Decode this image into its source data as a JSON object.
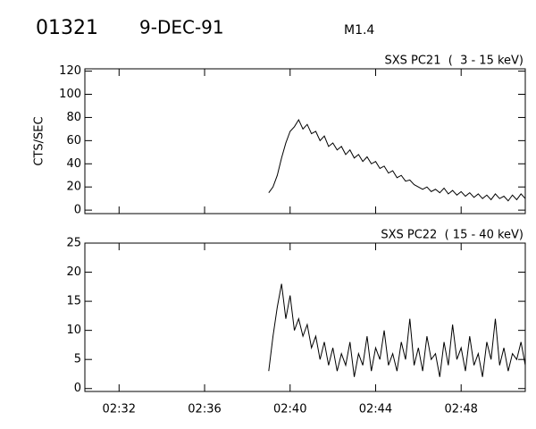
{
  "header": {
    "event": "01321",
    "date": "9-DEC-91",
    "class": "M1.4"
  },
  "chart_data": [
    {
      "type": "line",
      "title": "SXS PC21  (  3 - 15 keV)",
      "y_label": "CTS/SEC",
      "x": [
        159.0,
        159.2,
        159.4,
        159.6,
        159.8,
        160.0,
        160.2,
        160.4,
        160.6,
        160.8,
        161.0,
        161.2,
        161.4,
        161.6,
        161.8,
        162.0,
        162.2,
        162.4,
        162.6,
        162.8,
        163.0,
        163.2,
        163.4,
        163.6,
        163.8,
        164.0,
        164.2,
        164.4,
        164.6,
        164.8,
        165.0,
        165.2,
        165.4,
        165.6,
        165.8,
        166.0,
        166.2,
        166.4,
        166.6,
        166.8,
        167.0,
        167.2,
        167.4,
        167.6,
        167.8,
        168.0,
        168.2,
        168.4,
        168.6,
        168.8,
        169.0,
        169.2,
        169.4,
        169.6,
        169.8,
        170.0,
        170.2,
        170.4,
        170.6,
        170.8,
        171.0
      ],
      "series": [
        {
          "color": "#000000",
          "values": [
            15,
            20,
            30,
            45,
            58,
            68,
            72,
            78,
            70,
            74,
            66,
            68,
            60,
            64,
            55,
            58,
            52,
            55,
            48,
            52,
            45,
            48,
            42,
            46,
            40,
            42,
            36,
            38,
            32,
            34,
            28,
            30,
            25,
            26,
            22,
            20,
            18,
            20,
            16,
            18,
            15,
            19,
            14,
            17,
            13,
            16,
            12,
            15,
            11,
            14,
            10,
            13,
            9,
            14,
            10,
            12,
            8,
            13,
            9,
            14,
            10
          ]
        }
      ],
      "xlim": [
        150.4,
        171.0
      ],
      "xticks": [
        152,
        156,
        160,
        164,
        168
      ],
      "ylim": [
        -3,
        122
      ],
      "yticks": [
        0,
        20,
        40,
        60,
        80,
        100,
        120
      ]
    },
    {
      "type": "line",
      "title": "SXS PC22  ( 15 - 40 keV)",
      "x": [
        159.0,
        159.2,
        159.4,
        159.6,
        159.8,
        160.0,
        160.2,
        160.4,
        160.6,
        160.8,
        161.0,
        161.2,
        161.4,
        161.6,
        161.8,
        162.0,
        162.2,
        162.4,
        162.6,
        162.8,
        163.0,
        163.2,
        163.4,
        163.6,
        163.8,
        164.0,
        164.2,
        164.4,
        164.6,
        164.8,
        165.0,
        165.2,
        165.4,
        165.6,
        165.8,
        166.0,
        166.2,
        166.4,
        166.6,
        166.8,
        167.0,
        167.2,
        167.4,
        167.6,
        167.8,
        168.0,
        168.2,
        168.4,
        168.6,
        168.8,
        169.0,
        169.2,
        169.4,
        169.6,
        169.8,
        170.0,
        170.2,
        170.4,
        170.6,
        170.8,
        171.0
      ],
      "series": [
        {
          "color": "#000000",
          "values": [
            3,
            9,
            14,
            18,
            12,
            16,
            10,
            12,
            9,
            11,
            7,
            9,
            5,
            8,
            4,
            7,
            3,
            6,
            4,
            8,
            2,
            6,
            4,
            9,
            3,
            7,
            5,
            10,
            4,
            6,
            3,
            8,
            5,
            12,
            4,
            7,
            3,
            9,
            5,
            6,
            2,
            8,
            4,
            11,
            5,
            7,
            3,
            9,
            4,
            6,
            2,
            8,
            5,
            12,
            4,
            7,
            3,
            6,
            5,
            8,
            4
          ]
        }
      ],
      "xlim": [
        150.4,
        171.0
      ],
      "xticks": [
        {
          "value": 152,
          "label": "02:32"
        },
        {
          "value": 156,
          "label": "02:36"
        },
        {
          "value": 160,
          "label": "02:40"
        },
        {
          "value": 164,
          "label": "02:44"
        },
        {
          "value": 168,
          "label": "02:48"
        }
      ],
      "ylim": [
        -0.5,
        25
      ],
      "yticks": [
        0,
        5,
        10,
        15,
        20,
        25
      ]
    }
  ]
}
